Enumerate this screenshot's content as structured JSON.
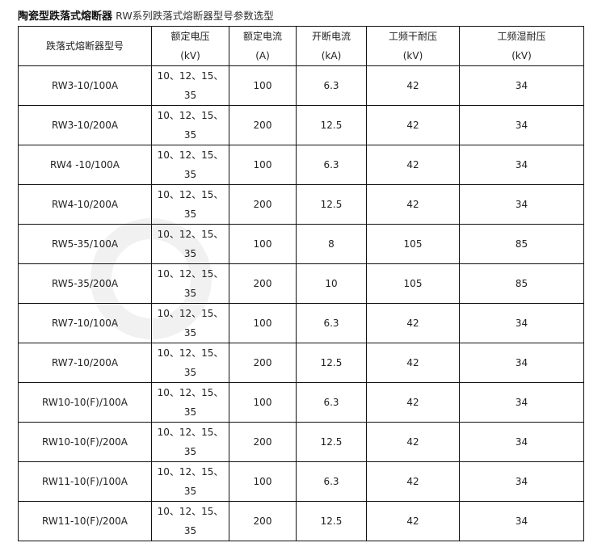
{
  "title": {
    "bold": "陶瓷型跌落式熔断器",
    "subtitle": "RW系列跌落式熔断器型号参数选型"
  },
  "table": {
    "headers": [
      {
        "line1": "跌落式熔断器型号",
        "line2": ""
      },
      {
        "line1": "额定电压",
        "line2": "(kV)"
      },
      {
        "line1": "额定电流",
        "line2": "(A)"
      },
      {
        "line1": "开断电流",
        "line2": "(kA)"
      },
      {
        "line1": "工频干耐压",
        "line2": "(kV)"
      },
      {
        "line1": "工频湿耐压",
        "line2": "(kV)"
      }
    ],
    "rows": [
      {
        "model": "RW3-10/100A",
        "v1": "10、12、15、",
        "v2": "35",
        "current": "100",
        "breaking": "6.3",
        "dry": "42",
        "wet": "34"
      },
      {
        "model": "RW3-10/200A",
        "v1": "10、12、15、",
        "v2": "35",
        "current": "200",
        "breaking": "12.5",
        "dry": "42",
        "wet": "34"
      },
      {
        "model": "RW4 -10/100A",
        "v1": "10、12、15、",
        "v2": "35",
        "current": "100",
        "breaking": "6.3",
        "dry": "42",
        "wet": "34"
      },
      {
        "model": "RW4-10/200A",
        "v1": "10、12、15、",
        "v2": "35",
        "current": "200",
        "breaking": "12.5",
        "dry": "42",
        "wet": "34"
      },
      {
        "model": "RW5-35/100A",
        "v1": "10、12、15、",
        "v2": "35",
        "current": "100",
        "breaking": "8",
        "dry": "105",
        "wet": "85"
      },
      {
        "model": "RW5-35/200A",
        "v1": "10、12、15、",
        "v2": "35",
        "current": "200",
        "breaking": "10",
        "dry": "105",
        "wet": "85"
      },
      {
        "model": "RW7-10/100A",
        "v1": "10、12、15、",
        "v2": "35",
        "current": "100",
        "breaking": "6.3",
        "dry": "42",
        "wet": "34"
      },
      {
        "model": "RW7-10/200A",
        "v1": "10、12、15、",
        "v2": "35",
        "current": "200",
        "breaking": "12.5",
        "dry": "42",
        "wet": "34"
      },
      {
        "model": "RW10-10(F)/100A",
        "v1": "10、12、15、",
        "v2": "35",
        "current": "100",
        "breaking": "6.3",
        "dry": "42",
        "wet": "34"
      },
      {
        "model": "RW10-10(F)/200A",
        "v1": "10、12、15、",
        "v2": "35",
        "current": "200",
        "breaking": "12.5",
        "dry": "42",
        "wet": "34"
      },
      {
        "model": "RW11-10(F)/100A",
        "v1": "10、12、15、",
        "v2": "35",
        "current": "100",
        "breaking": "6.3",
        "dry": "42",
        "wet": "34"
      },
      {
        "model": "RW11-10(F)/200A",
        "v1": "10、12、15、",
        "v2": "35",
        "current": "200",
        "breaking": "12.5",
        "dry": "42",
        "wet": "34"
      }
    ]
  }
}
